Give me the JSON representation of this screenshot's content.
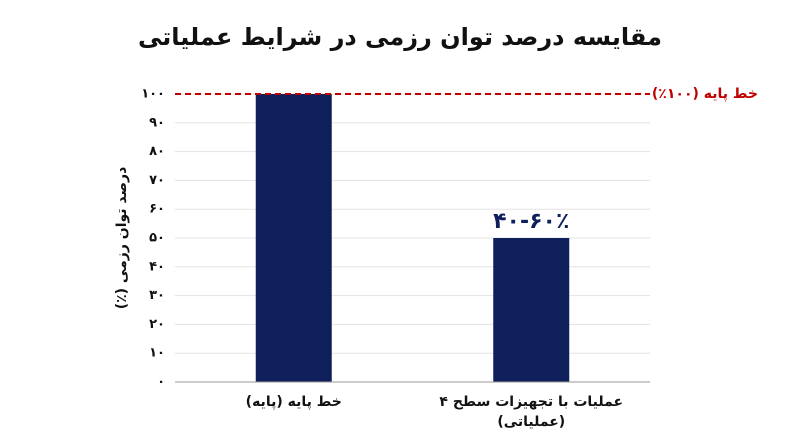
{
  "chart_data": {
    "type": "bar",
    "title": "مقایسه درصد توان رزمی در شرایط عملیاتی",
    "y_label": "درصد توان رزمی (٪)",
    "categories": [
      "خط پایه (پایه)",
      "عملیات با تجهیزات سطح ۴\n(عملیاتی)"
    ],
    "values": [
      100,
      50
    ],
    "value_labels": [
      null,
      "۴۰-۶۰٪"
    ],
    "color": "#0f1f5c",
    "ylim": [
      0,
      100
    ],
    "yticks": [
      {
        "value": 0,
        "label": "۰"
      },
      {
        "value": 10,
        "label": "۱۰"
      },
      {
        "value": 20,
        "label": "۲۰"
      },
      {
        "value": 30,
        "label": "۳۰"
      },
      {
        "value": 40,
        "label": "۴۰"
      },
      {
        "value": 50,
        "label": "۵۰"
      },
      {
        "value": 60,
        "label": "۶۰"
      },
      {
        "value": 70,
        "label": "۷۰"
      },
      {
        "value": 80,
        "label": "۸۰"
      },
      {
        "value": 90,
        "label": "۹۰"
      },
      {
        "value": 100,
        "label": "۱۰۰"
      }
    ],
    "grid": true,
    "reference_line": {
      "value": 100,
      "label": "خط پایه (۱۰۰٪)",
      "color": "#c00000"
    }
  }
}
